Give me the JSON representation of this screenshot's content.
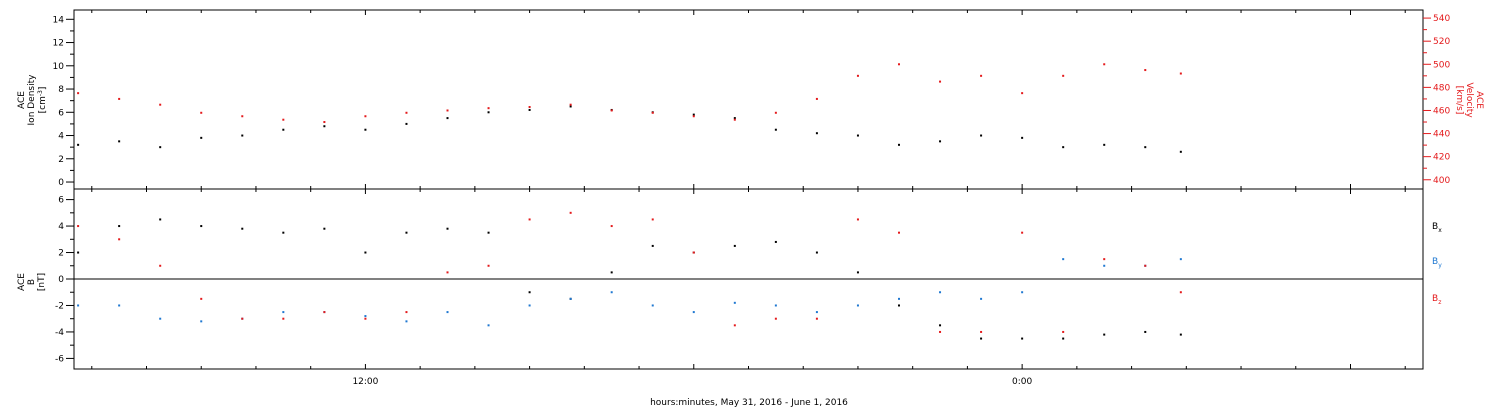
{
  "chart_data": [
    {
      "type": "scatter",
      "panel": "plasma",
      "left_ylabel": [
        "ACE",
        "Ion Density",
        "[cm",
        "-3",
        "]"
      ],
      "right_ylabel": [
        "ACE",
        "Velocity",
        "[km/s]"
      ],
      "yticks_left": [
        "0",
        "2",
        "4",
        "6",
        "8",
        "10",
        "12",
        "14"
      ],
      "ylim_left": [
        -0.6,
        14.8
      ],
      "yticks_right": [
        "400",
        "420",
        "440",
        "460",
        "480",
        "500",
        "520",
        "540"
      ],
      "ylim_right": [
        392,
        547
      ],
      "xlim_hours": [
        -10.65,
        38.65
      ],
      "series": [
        {
          "axis": "left",
          "color": "#000000",
          "t": [
            -10.5,
            -9,
            -7.5,
            -6,
            -4.5,
            -3,
            -1.5,
            0,
            1.5,
            3,
            4.5,
            6,
            7.5,
            9,
            10.5,
            12,
            13.5,
            15,
            16.5,
            18,
            19.5,
            21,
            22.5,
            24,
            25.5,
            27,
            28.5,
            29.8
          ],
          "y": [
            3.2,
            3.5,
            3.0,
            3.8,
            4.0,
            4.5,
            4.8,
            4.5,
            5.0,
            5.5,
            6.0,
            6.2,
            6.5,
            6.2,
            6.0,
            5.8,
            5.5,
            4.5,
            4.2,
            4.0,
            3.2,
            3.5,
            4.0,
            3.8,
            3.0,
            3.2,
            3.0,
            2.6
          ]
        },
        {
          "axis": "right",
          "color": "#e41a1c",
          "t": [
            -10.5,
            -9,
            -7.5,
            -6,
            -4.5,
            -3,
            -1.5,
            0,
            1.5,
            3,
            4.5,
            6,
            7.5,
            9,
            10.5,
            12,
            13.5,
            15,
            16.5,
            18,
            19.5,
            21,
            22.5,
            24,
            25.5,
            27,
            28.5,
            29.8
          ],
          "y": [
            475,
            470,
            465,
            458,
            455,
            452,
            450,
            455,
            458,
            460,
            462,
            463,
            465,
            460,
            458,
            455,
            452,
            458,
            470,
            490,
            500,
            485,
            490,
            475,
            490,
            500,
            495,
            492
          ]
        }
      ]
    },
    {
      "type": "scatter",
      "panel": "magnetic-field",
      "left_ylabel": [
        "ACE",
        "B",
        "[nT]"
      ],
      "yticks_left": [
        "-6",
        "-4",
        "-2",
        "0",
        "2",
        "4",
        "6"
      ],
      "ylim_left": [
        -6.8,
        6.8
      ],
      "zero_line": true,
      "xlim_hours": [
        -10.65,
        38.65
      ],
      "series": [
        {
          "name": "B",
          "sub": "x",
          "color": "#000000",
          "t": [
            -10.5,
            -9,
            -7.5,
            -6,
            -4.5,
            -3,
            -1.5,
            0,
            1.5,
            3,
            4.5,
            6,
            7.5,
            9,
            10.5,
            12,
            13.5,
            15,
            16.5,
            18,
            19.5,
            21,
            22.5,
            24,
            25.5,
            27,
            28.5,
            29.8
          ],
          "y": [
            2.0,
            4.0,
            4.5,
            4.0,
            3.8,
            3.5,
            3.8,
            2.0,
            3.5,
            3.8,
            3.5,
            -1.0,
            -1.5,
            0.5,
            2.5,
            2.0,
            2.5,
            2.8,
            2.0,
            0.5,
            -2.0,
            -3.5,
            -4.5,
            -4.5,
            -4.5,
            -4.2,
            -4.0,
            -4.2
          ]
        },
        {
          "name": "B",
          "sub": "y",
          "color": "#1f78d1",
          "t": [
            -10.5,
            -9,
            -7.5,
            -6,
            -4.5,
            -3,
            -1.5,
            0,
            1.5,
            3,
            4.5,
            6,
            7.5,
            9,
            10.5,
            12,
            13.5,
            15,
            16.5,
            18,
            19.5,
            21,
            22.5,
            24,
            25.5,
            27,
            28.5,
            29.8
          ],
          "y": [
            -2.0,
            -2.0,
            -3.0,
            -3.2,
            -3.0,
            -2.5,
            -2.5,
            -2.8,
            -3.2,
            -2.5,
            -3.5,
            -2.0,
            -1.5,
            -1.0,
            -2.0,
            -2.5,
            -1.8,
            -2.0,
            -2.5,
            -2.0,
            -1.5,
            -1.0,
            -1.5,
            -1.0,
            1.5,
            1.0,
            1.0,
            1.5
          ]
        },
        {
          "name": "B",
          "sub": "z",
          "color": "#e41a1c",
          "t": [
            -10.5,
            -9,
            -7.5,
            -6,
            -4.5,
            -3,
            -1.5,
            0,
            1.5,
            3,
            4.5,
            6,
            7.5,
            9,
            10.5,
            12,
            13.5,
            15,
            16.5,
            18,
            19.5,
            21,
            22.5,
            24,
            25.5,
            27,
            28.5,
            29.8
          ],
          "y": [
            4.0,
            3.0,
            1.0,
            -1.5,
            -3.0,
            -3.0,
            -2.5,
            -3.0,
            -2.5,
            0.5,
            1.0,
            4.5,
            5.0,
            4.0,
            4.5,
            2.0,
            -3.5,
            -3.0,
            -3.0,
            4.5,
            3.5,
            -4.0,
            -4.0,
            3.5,
            -4.0,
            1.5,
            1.0,
            -1.0
          ]
        }
      ]
    }
  ],
  "x_axis": {
    "ticks": [
      {
        "t": 0,
        "label": "12:00"
      },
      {
        "t": 12,
        "label": ""
      },
      {
        "t": 24,
        "label": "0:00"
      },
      {
        "t": 36,
        "label": ""
      }
    ],
    "xlabel": "hours:minutes, May 31, 2016 - June  1, 2016"
  }
}
